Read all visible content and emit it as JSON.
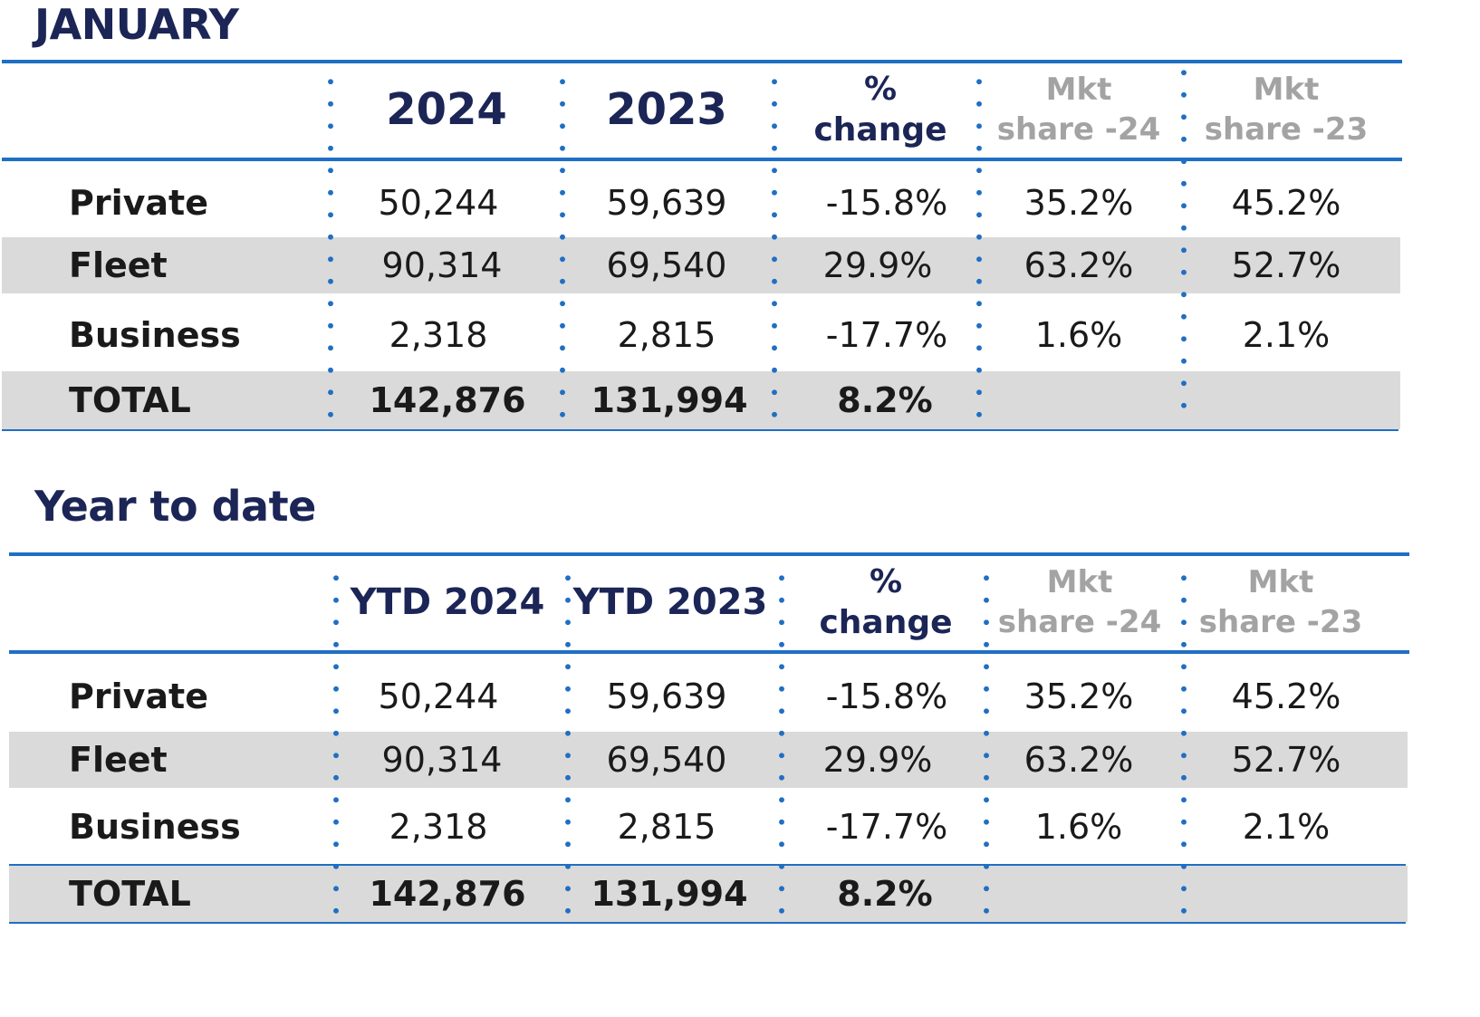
{
  "sections": [
    {
      "title": "JANUARY",
      "headers": {
        "year_a": "2024",
        "year_b": "2023",
        "change_line1": "%",
        "change_line2": "change",
        "mkt24_line1": "Mkt",
        "mkt24_line2": "share -24",
        "mkt23_line1": "Mkt",
        "mkt23_line2": "share -23"
      },
      "rows": [
        {
          "label": "Private",
          "a": "50,244",
          "b": "59,639",
          "change": "-15.8%",
          "mkt24": "35.2%",
          "mkt23": "45.2%"
        },
        {
          "label": "Fleet",
          "a": "90,314",
          "b": "69,540",
          "change": "29.9%",
          "mkt24": "63.2%",
          "mkt23": "52.7%"
        },
        {
          "label": "Business",
          "a": "2,318",
          "b": "2,815",
          "change": "-17.7%",
          "mkt24": "1.6%",
          "mkt23": "2.1%"
        },
        {
          "label": "TOTAL",
          "a": "142,876",
          "b": "131,994",
          "change": "8.2%",
          "mkt24": "",
          "mkt23": ""
        }
      ]
    },
    {
      "title": "Year to date",
      "headers": {
        "year_a": "YTD 2024",
        "year_b": "YTD 2023",
        "change_line1": "%",
        "change_line2": "change",
        "mkt24_line1": "Mkt",
        "mkt24_line2": "share -24",
        "mkt23_line1": "Mkt",
        "mkt23_line2": "share -23"
      },
      "rows": [
        {
          "label": "Private",
          "a": "50,244",
          "b": "59,639",
          "change": "-15.8%",
          "mkt24": "35.2%",
          "mkt23": "45.2%"
        },
        {
          "label": "Fleet",
          "a": "90,314",
          "b": "69,540",
          "change": "29.9%",
          "mkt24": "63.2%",
          "mkt23": "52.7%"
        },
        {
          "label": "Business",
          "a": "2,318",
          "b": "2,815",
          "change": "-17.7%",
          "mkt24": "1.6%",
          "mkt23": "2.1%"
        },
        {
          "label": "TOTAL",
          "a": "142,876",
          "b": "131,994",
          "change": "8.2%",
          "mkt24": "",
          "mkt23": ""
        }
      ]
    }
  ],
  "colors": {
    "title": "#1b2556",
    "rule": "#1f6fc4",
    "band": "#dadada",
    "muted_header": "#a3a3a3"
  }
}
